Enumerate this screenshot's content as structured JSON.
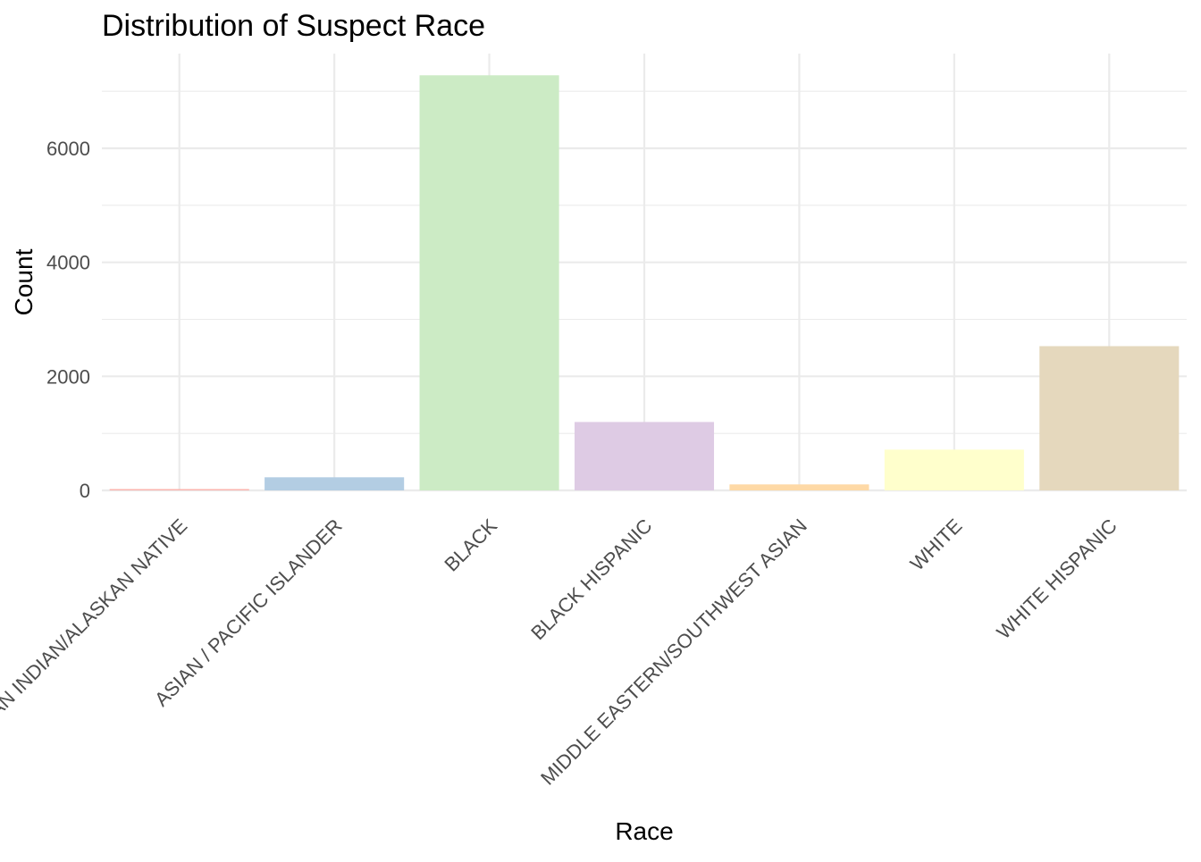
{
  "chart_data": {
    "type": "bar",
    "title": "Distribution of Suspect Race",
    "xlabel": "Race",
    "ylabel": "Count",
    "categories": [
      "AMERICAN INDIAN/ALASKAN NATIVE",
      "ASIAN / PACIFIC ISLANDER",
      "BLACK",
      "BLACK HISPANIC",
      "MIDDLE EASTERN/SOUTHWEST ASIAN",
      "WHITE",
      "WHITE HISPANIC"
    ],
    "values": [
      12,
      230,
      7280,
      1200,
      105,
      715,
      2530
    ],
    "colors": [
      "#FBB4AE",
      "#B3CDE3",
      "#CCEBC5",
      "#DECBE4",
      "#FED9A6",
      "#FFFFCC",
      "#E5D8BD"
    ],
    "yticks": [
      0,
      2000,
      4000,
      6000
    ],
    "ylim": [
      0,
      7650
    ],
    "grid": true,
    "legend": "none"
  }
}
